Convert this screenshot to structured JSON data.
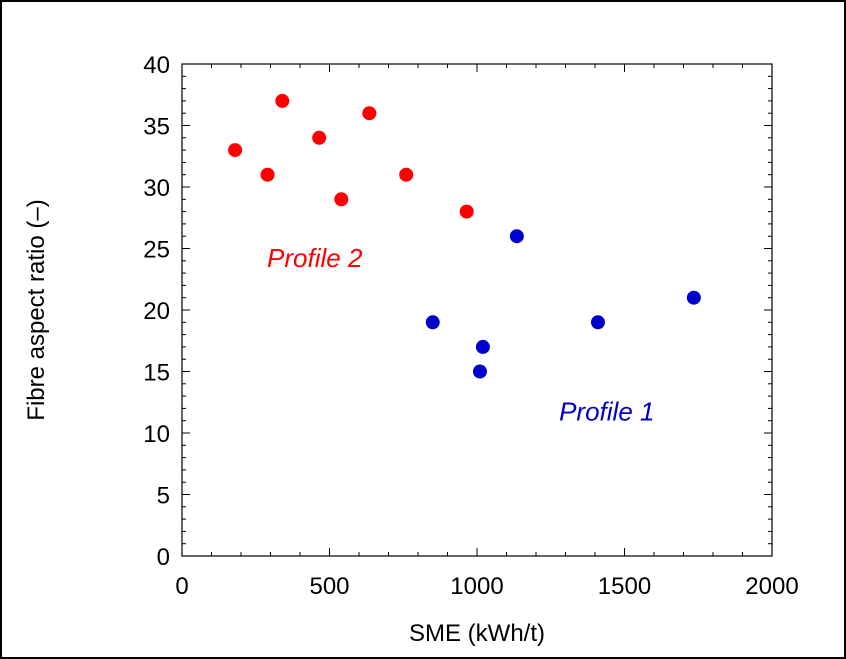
{
  "chart_data": {
    "type": "scatter",
    "xlabel": "SME (kWh/t)",
    "ylabel": "Fibre aspect ratio (–)",
    "xlim": [
      0,
      2000
    ],
    "ylim": [
      0,
      40
    ],
    "xticks": [
      0,
      500,
      1000,
      1500,
      2000
    ],
    "yticks": [
      0,
      5,
      10,
      15,
      20,
      25,
      30,
      35,
      40
    ],
    "grid": false,
    "series": [
      {
        "name": "Profile 2",
        "color": "#ff0000",
        "points": [
          {
            "x": 180,
            "y": 33
          },
          {
            "x": 290,
            "y": 31
          },
          {
            "x": 340,
            "y": 37
          },
          {
            "x": 465,
            "y": 34
          },
          {
            "x": 540,
            "y": 29
          },
          {
            "x": 635,
            "y": 36
          },
          {
            "x": 760,
            "y": 31
          },
          {
            "x": 965,
            "y": 28
          }
        ]
      },
      {
        "name": "Profile 1",
        "color": "#0000cc",
        "points": [
          {
            "x": 850,
            "y": 19
          },
          {
            "x": 1010,
            "y": 15
          },
          {
            "x": 1020,
            "y": 17
          },
          {
            "x": 1135,
            "y": 26
          },
          {
            "x": 1410,
            "y": 19
          },
          {
            "x": 1735,
            "y": 21
          }
        ]
      }
    ],
    "annotations": [
      {
        "text": "Profile 2",
        "x": 450,
        "y": 23.5,
        "color": "#ff0000"
      },
      {
        "text": "Profile 1",
        "x": 1440,
        "y": 11,
        "color": "#0000cc"
      }
    ]
  }
}
